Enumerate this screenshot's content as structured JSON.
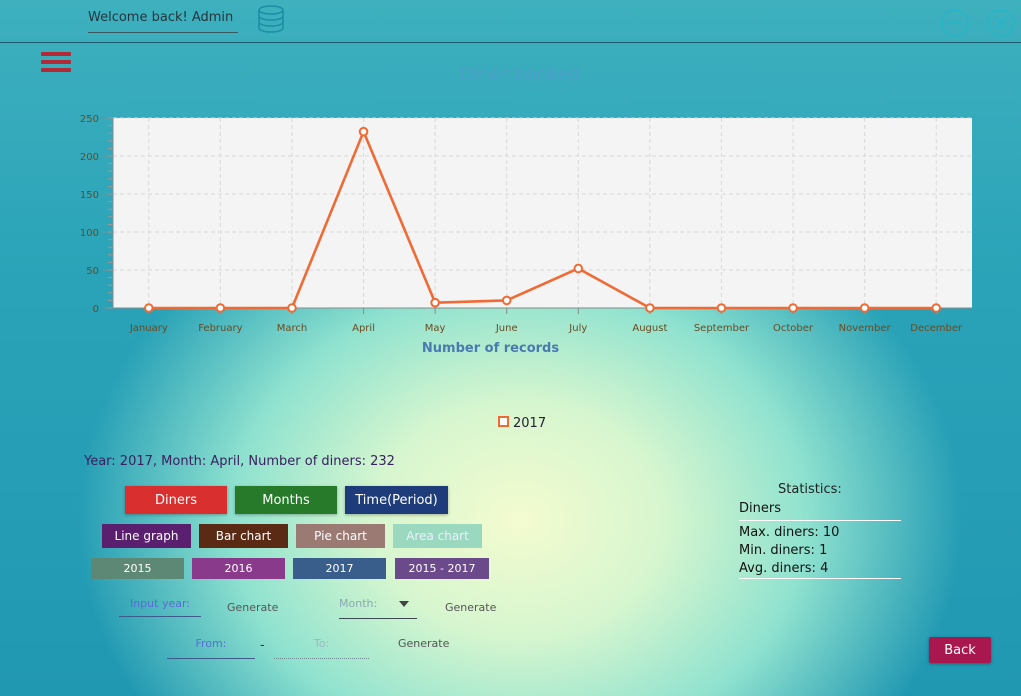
{
  "header": {
    "welcome_text": "Welcome back! Admin",
    "db_icon": "database-icon",
    "minimize_icon": "minimize-icon",
    "close_icon": "close-icon"
  },
  "chart_data": {
    "type": "line",
    "title": "Diner booked",
    "xlabel": "Number of records",
    "ylabel": "",
    "categories": [
      "January",
      "February",
      "March",
      "April",
      "May",
      "June",
      "July",
      "August",
      "September",
      "October",
      "November",
      "December"
    ],
    "series": [
      {
        "name": "2017",
        "values": [
          0,
          0,
          0,
          232,
          7,
          10,
          52,
          0,
          0,
          0,
          0,
          0
        ],
        "color": "#f06a35"
      }
    ],
    "ylim": [
      0,
      250
    ],
    "yticks": [
      0,
      50,
      100,
      150,
      200,
      250
    ],
    "grid": true,
    "legend": "bottom-center"
  },
  "info": {
    "selection_text": "Year: 2017, Month: April, Number of diners: 232"
  },
  "buttons": {
    "diners": "Diners",
    "months": "Months",
    "time_period": "Time(Period)",
    "line_graph": "Line graph",
    "bar_chart": "Bar chart",
    "pie_chart": "Pie chart",
    "area_chart": "Area chart",
    "y2015": "2015",
    "y2016": "2016",
    "y2017": "2017",
    "y2015_2017": "2015 - 2017",
    "generate": "Generate",
    "back": "Back"
  },
  "inputs": {
    "input_year_placeholder": "Input year:",
    "month_placeholder": "Month:",
    "from_placeholder": "From:",
    "to_placeholder": "To:",
    "dash": "-"
  },
  "statistics": {
    "title": "Statistics:",
    "header": "Diners",
    "max": "Max. diners: 10",
    "min": "Min. diners: 1",
    "avg": "Avg. diners: 4"
  },
  "colors": {
    "line": "#f06a35",
    "diners_btn": "#d9302f",
    "months_btn": "#267a2a",
    "time_btn": "#1e3c7a",
    "line_graph_btn": "#5a1f6e",
    "bar_chart_btn": "#5a2a14",
    "pie_chart_btn": "#9a7a72",
    "area_chart_btn": "#9ad9c0",
    "y2015_btn": "#5e8876",
    "y2016_btn": "#8a3a8a",
    "y2017_btn": "#3a5e8c",
    "y2015_2017_btn": "#6a4a8a",
    "back_btn": "#a8174e"
  }
}
